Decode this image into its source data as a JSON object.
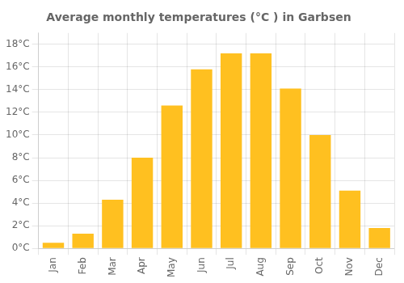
{
  "chart_data": {
    "type": "bar",
    "title": "Average monthly temperatures (°C ) in Garbsen",
    "categories": [
      "Jan",
      "Feb",
      "Mar",
      "Apr",
      "May",
      "Jun",
      "Jul",
      "Aug",
      "Sep",
      "Oct",
      "Nov",
      "Dec"
    ],
    "values": [
      0.5,
      1.3,
      4.3,
      8.0,
      12.6,
      15.8,
      17.2,
      17.2,
      14.1,
      10.0,
      5.1,
      1.8
    ],
    "color": "#FFC020",
    "ylim": [
      0,
      19
    ],
    "yticks": [
      {
        "value": 0,
        "label": "0°C"
      },
      {
        "value": 2,
        "label": "2°C"
      },
      {
        "value": 4,
        "label": "4°C"
      },
      {
        "value": 6,
        "label": "6°C"
      },
      {
        "value": 8,
        "label": "8°C"
      },
      {
        "value": 10,
        "label": "10°C"
      },
      {
        "value": 12,
        "label": "12°C"
      },
      {
        "value": 14,
        "label": "14°C"
      },
      {
        "value": 16,
        "label": "16°C"
      },
      {
        "value": 18,
        "label": "18°C"
      }
    ],
    "grid": true
  }
}
